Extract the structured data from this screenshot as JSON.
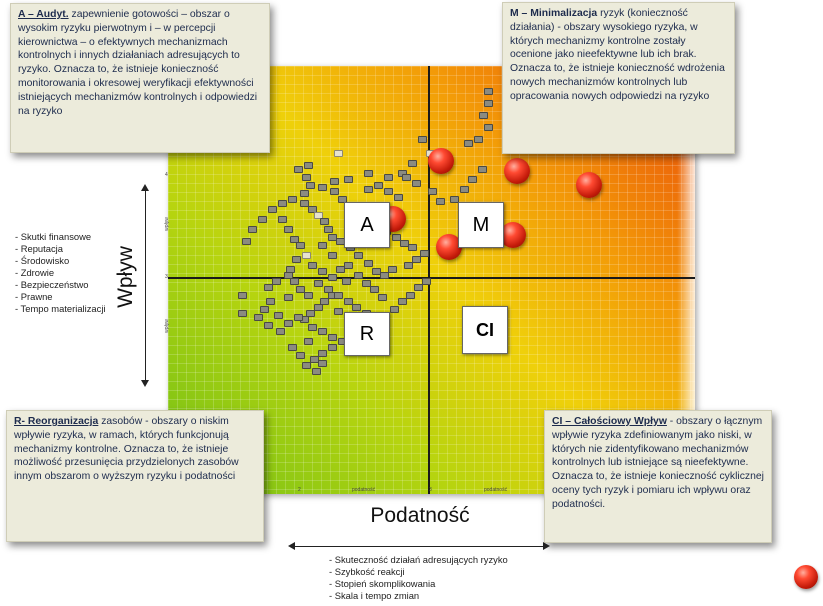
{
  "axes": {
    "y_title": "Wpływ",
    "x_title": "Podatność",
    "y_factors": [
      "- Skutki finansowe",
      "- Reputacja",
      "- Środowisko",
      "- Zdrowie",
      "- Bezpieczeństwo",
      "- Prawne",
      "- Tempo materializacji"
    ],
    "x_factors": [
      "- Skuteczność działań adresujących ryzyko",
      "- Szybkość reakcji",
      "- Stopień skomplikowania",
      "- Skala i tempo zmian"
    ]
  },
  "quadrants": {
    "A": "A",
    "M": "M",
    "R": "R",
    "CI": "CI"
  },
  "tick_labels": {
    "x1": "2",
    "x1_name": "podatność",
    "x2": "3",
    "x2_name": "podatność",
    "y1": "4",
    "y1_name": "wpływ",
    "y2": "3",
    "y2_name": "wpływ",
    "y3": "2",
    "y3_name": "wpływ"
  },
  "callouts": {
    "a_title": "A – Audyt.",
    "a_text": " zapewnienie gotowości – obszar o wysokim ryzyku pierwotnym i – w percepcji kierownictwa – o efektywnych mechanizmach kontrolnych i innych działaniach adresujących to ryzyko. Oznacza to, że istnieje konieczność monitorowania i okresowej weryfikacji efektywności istniejących mechanizmów kontrolnych i odpowiedzi na ryzyko",
    "m_title": "M – Minimalizacja",
    "m_text": " ryzyk (konieczność działania) - obszary wysokiego ryzyka, w których mechanizmy kontrolne zostały ocenione jako nieefektywne lub ich brak. Oznacza to, że istnieje konieczność wdrożenia nowych mechanizmów kontrolnych lub opracowania nowych odpowiedzi na ryzyko",
    "r_title": "R- Reorganizacja",
    "r_text": " zasobów - obszary o niskim wpływie ryzyka, w ramach, których funkcjonują mechanizmy kontrolne. Oznacza to, że istnieje możliwość przesunięcia przydzielonych zasobów innym obszarom o wyższym ryzyku i podatności",
    "ci_title": "CI – Całościowy Wpływ",
    "ci_text": " -  obszary o łącznym wpływie ryzyka zdefiniowanym jako niski, w których nie zidentyfikowano mechanizmów kontrolnych lub istniejące są nieefektywne. Oznacza to, że istnieje konieczność cyklicznej oceny tych ryzyk i pomiaru ich wpływu oraz podatności."
  },
  "colors": {
    "gradient_low": "#72c017",
    "gradient_mid": "#efd00a",
    "gradient_high": "#e8440a",
    "callout_bg": "#ecebdb",
    "callout_text": "#1d2b4d",
    "risk_ball": "#d8240f"
  }
}
